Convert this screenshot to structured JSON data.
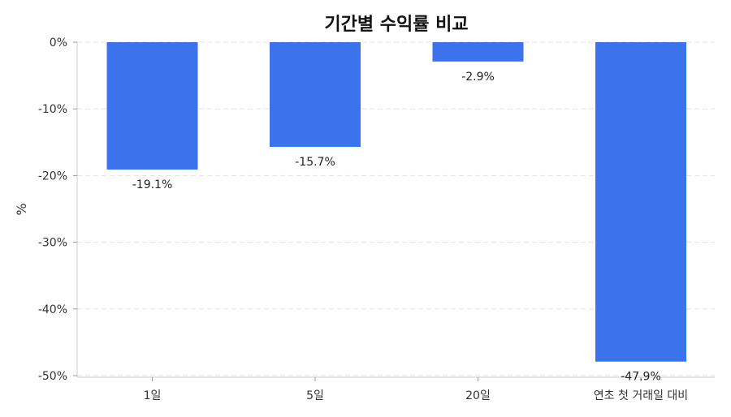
{
  "chart_data": {
    "type": "bar",
    "title": "기간별 수익률 비교",
    "xlabel": "",
    "ylabel": "%",
    "categories": [
      "1일",
      "5일",
      "20일",
      "연초 첫 거래일 대비"
    ],
    "values": [
      -19.1,
      -15.7,
      -2.9,
      -47.9
    ],
    "data_labels": [
      "-19.1%",
      "-15.7%",
      "-2.9%",
      "-47.9%"
    ],
    "ylim": [
      -50,
      0
    ],
    "yticks": [
      0,
      -10,
      -20,
      -30,
      -40,
      -50
    ],
    "ytick_labels": [
      "0%",
      "-10%",
      "-20%",
      "-30%",
      "-40%",
      "-50%"
    ],
    "grid": true,
    "bar_color": "#3b73ec"
  }
}
